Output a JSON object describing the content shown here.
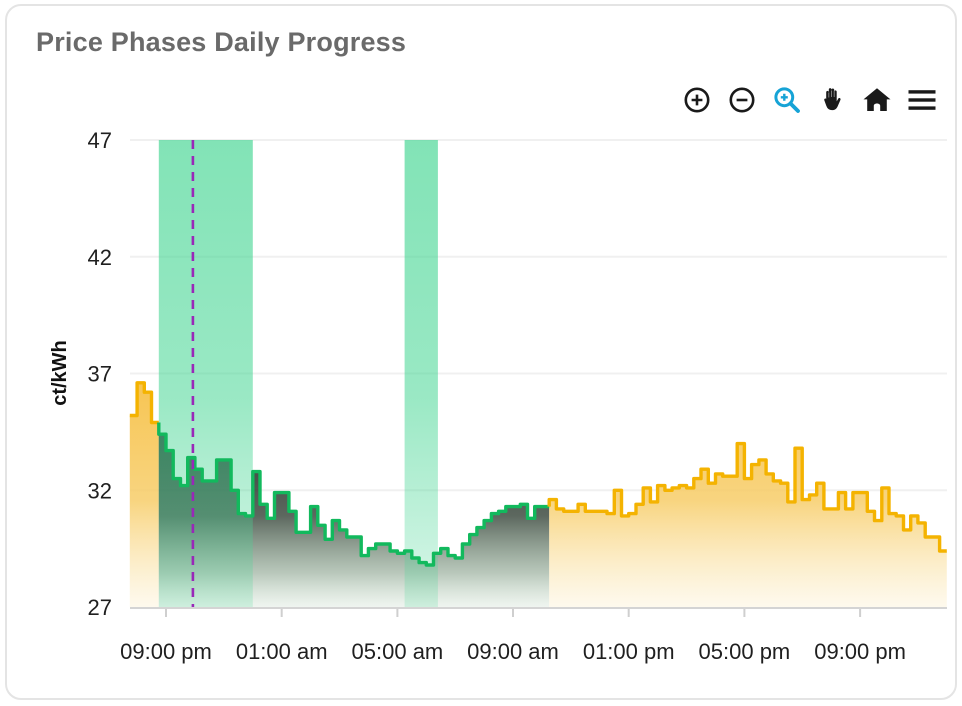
{
  "card": {
    "title": "Price Phases Daily Progress"
  },
  "colors": {
    "title": "#6a6a6a",
    "axis_text": "#1f1f1f",
    "icon": "#1a1a1a",
    "accent_blue": "#16a3d6",
    "green_line": "#12b95d",
    "yellow_line": "#f4b301",
    "band_green": "#47d694",
    "now_purple": "#9928b8"
  },
  "toolbar": {
    "buttons": [
      {
        "name": "zoom-in"
      },
      {
        "name": "zoom-out"
      },
      {
        "name": "box-zoom",
        "active": true
      },
      {
        "name": "pan"
      },
      {
        "name": "home"
      },
      {
        "name": "menu"
      }
    ]
  },
  "chart_data": {
    "type": "area",
    "title": "Price Phases Daily Progress",
    "xlabel": "",
    "ylabel": "ct/kWh",
    "ylim": [
      27,
      47
    ],
    "y_ticks": [
      47,
      42,
      37,
      32,
      27
    ],
    "grid": "horizontal-only",
    "legend": "none",
    "step_minutes": 15,
    "x_ticks": [
      {
        "hour": 21,
        "label": "09:00 pm"
      },
      {
        "hour": 25,
        "label": "01:00 am"
      },
      {
        "hour": 29,
        "label": "05:00 am"
      },
      {
        "hour": 33,
        "label": "09:00 am"
      },
      {
        "hour": 37,
        "label": "01:00 pm"
      },
      {
        "hour": 41,
        "label": "05:00 pm"
      },
      {
        "hour": 45,
        "label": "09:00 pm"
      }
    ],
    "bands": [
      {
        "name": "cheap-phase-window-1",
        "start_hour": 20.75,
        "end_hour": 24.0,
        "start_label": "08:45 pm",
        "end_label": "12:00 am"
      },
      {
        "name": "cheap-phase-window-2",
        "start_hour": 29.25,
        "end_hour": 30.4,
        "start_label": "05:15 am",
        "end_label": "06:25 am"
      }
    ],
    "now_line": {
      "hour": 21.93,
      "label": "now"
    },
    "phase_styles": {
      "expensive": {
        "line": "#f4b301"
      },
      "cheap": {
        "line": "#12b95d"
      }
    },
    "segments": [
      {
        "name": "evening-expensive-phase",
        "phase": "expensive",
        "start_time": "19:45",
        "start_hour": 19.75,
        "values": [
          35.2,
          36.6,
          36.2,
          34.9
        ]
      },
      {
        "name": "night-cheap-phase",
        "phase": "cheap",
        "start_time": "20:45",
        "start_hour": 20.75,
        "values": [
          34.4,
          33.7,
          32.5,
          32.2,
          33.4,
          32.9,
          32.4,
          32.4,
          33.3,
          33.3,
          32.0,
          31.0,
          30.9,
          32.8,
          31.4,
          30.8,
          31.9,
          31.9,
          31.1,
          30.2,
          30.2,
          31.3,
          30.5,
          29.9,
          30.7,
          30.3,
          30.0,
          30.0,
          29.2,
          29.5,
          29.7,
          29.7,
          29.4,
          29.3,
          29.4,
          29.1,
          28.9,
          28.8,
          29.3,
          29.5,
          29.2,
          29.1,
          29.7,
          30.1,
          30.4,
          30.7,
          31.0,
          31.1,
          31.3,
          31.3,
          31.4,
          30.8,
          31.3,
          31.3
        ]
      },
      {
        "name": "daytime-expensive-phase",
        "phase": "expensive",
        "start_time": "10:15",
        "start_hour": 34.25,
        "values": [
          31.6,
          31.2,
          31.1,
          31.1,
          31.4,
          31.1,
          31.1,
          31.1,
          31.0,
          32.0,
          30.9,
          31.0,
          31.4,
          32.1,
          31.5,
          32.2,
          32.0,
          32.1,
          32.2,
          32.1,
          32.5,
          32.9,
          32.3,
          32.7,
          32.6,
          32.6,
          34.0,
          32.5,
          33.1,
          33.3,
          32.7,
          32.4,
          32.3,
          31.5,
          33.8,
          31.6,
          31.8,
          32.3,
          31.2,
          31.2,
          31.9,
          31.2,
          31.9,
          31.9,
          31.1,
          30.7,
          32.1,
          31.0,
          30.9,
          30.3,
          30.9,
          30.6,
          30.0,
          30.0,
          29.4
        ]
      }
    ]
  }
}
